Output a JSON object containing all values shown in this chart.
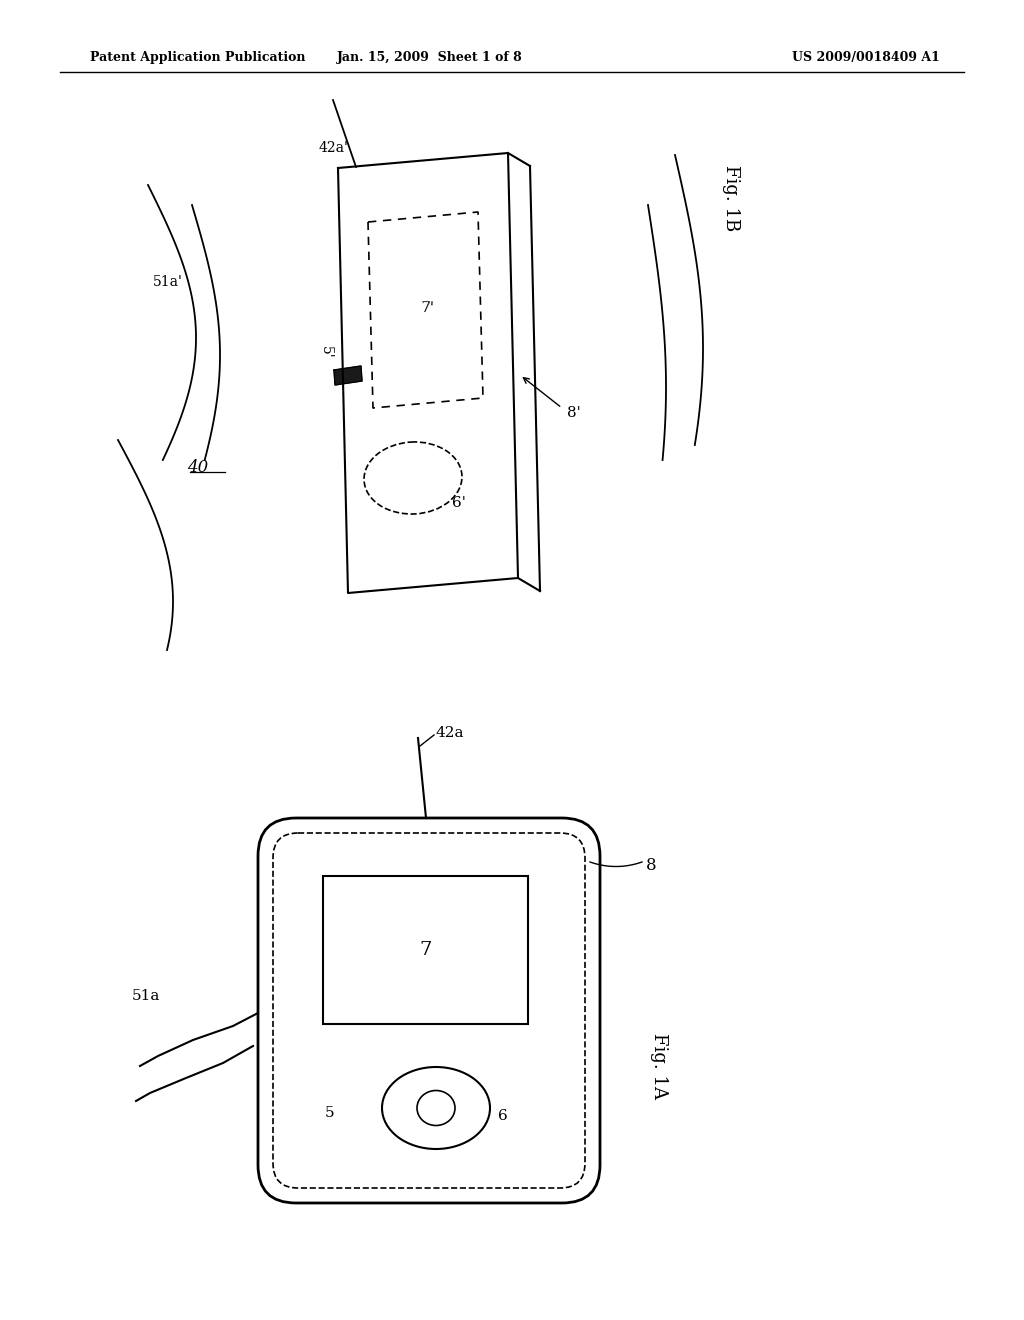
{
  "background_color": "#ffffff",
  "header_left": "Patent Application Publication",
  "header_mid": "Jan. 15, 2009  Sheet 1 of 8",
  "header_right": "US 2009/0018409 A1",
  "fig1a_label": "Fig. 1A",
  "fig1b_label": "Fig. 1B",
  "label_40": "40",
  "label_51a": "51a",
  "label_51a_prime": "51a'",
  "label_42a": "42a",
  "label_42a_prime": "42a'",
  "label_8": "8",
  "label_8_prime": "8'",
  "label_7": "7",
  "label_7_prime": "7'",
  "label_6": "6",
  "label_6_prime": "6'",
  "label_5": "5",
  "label_5_prime": "5'",
  "line_color": "#000000",
  "dark_fill": "#1a1a1a"
}
